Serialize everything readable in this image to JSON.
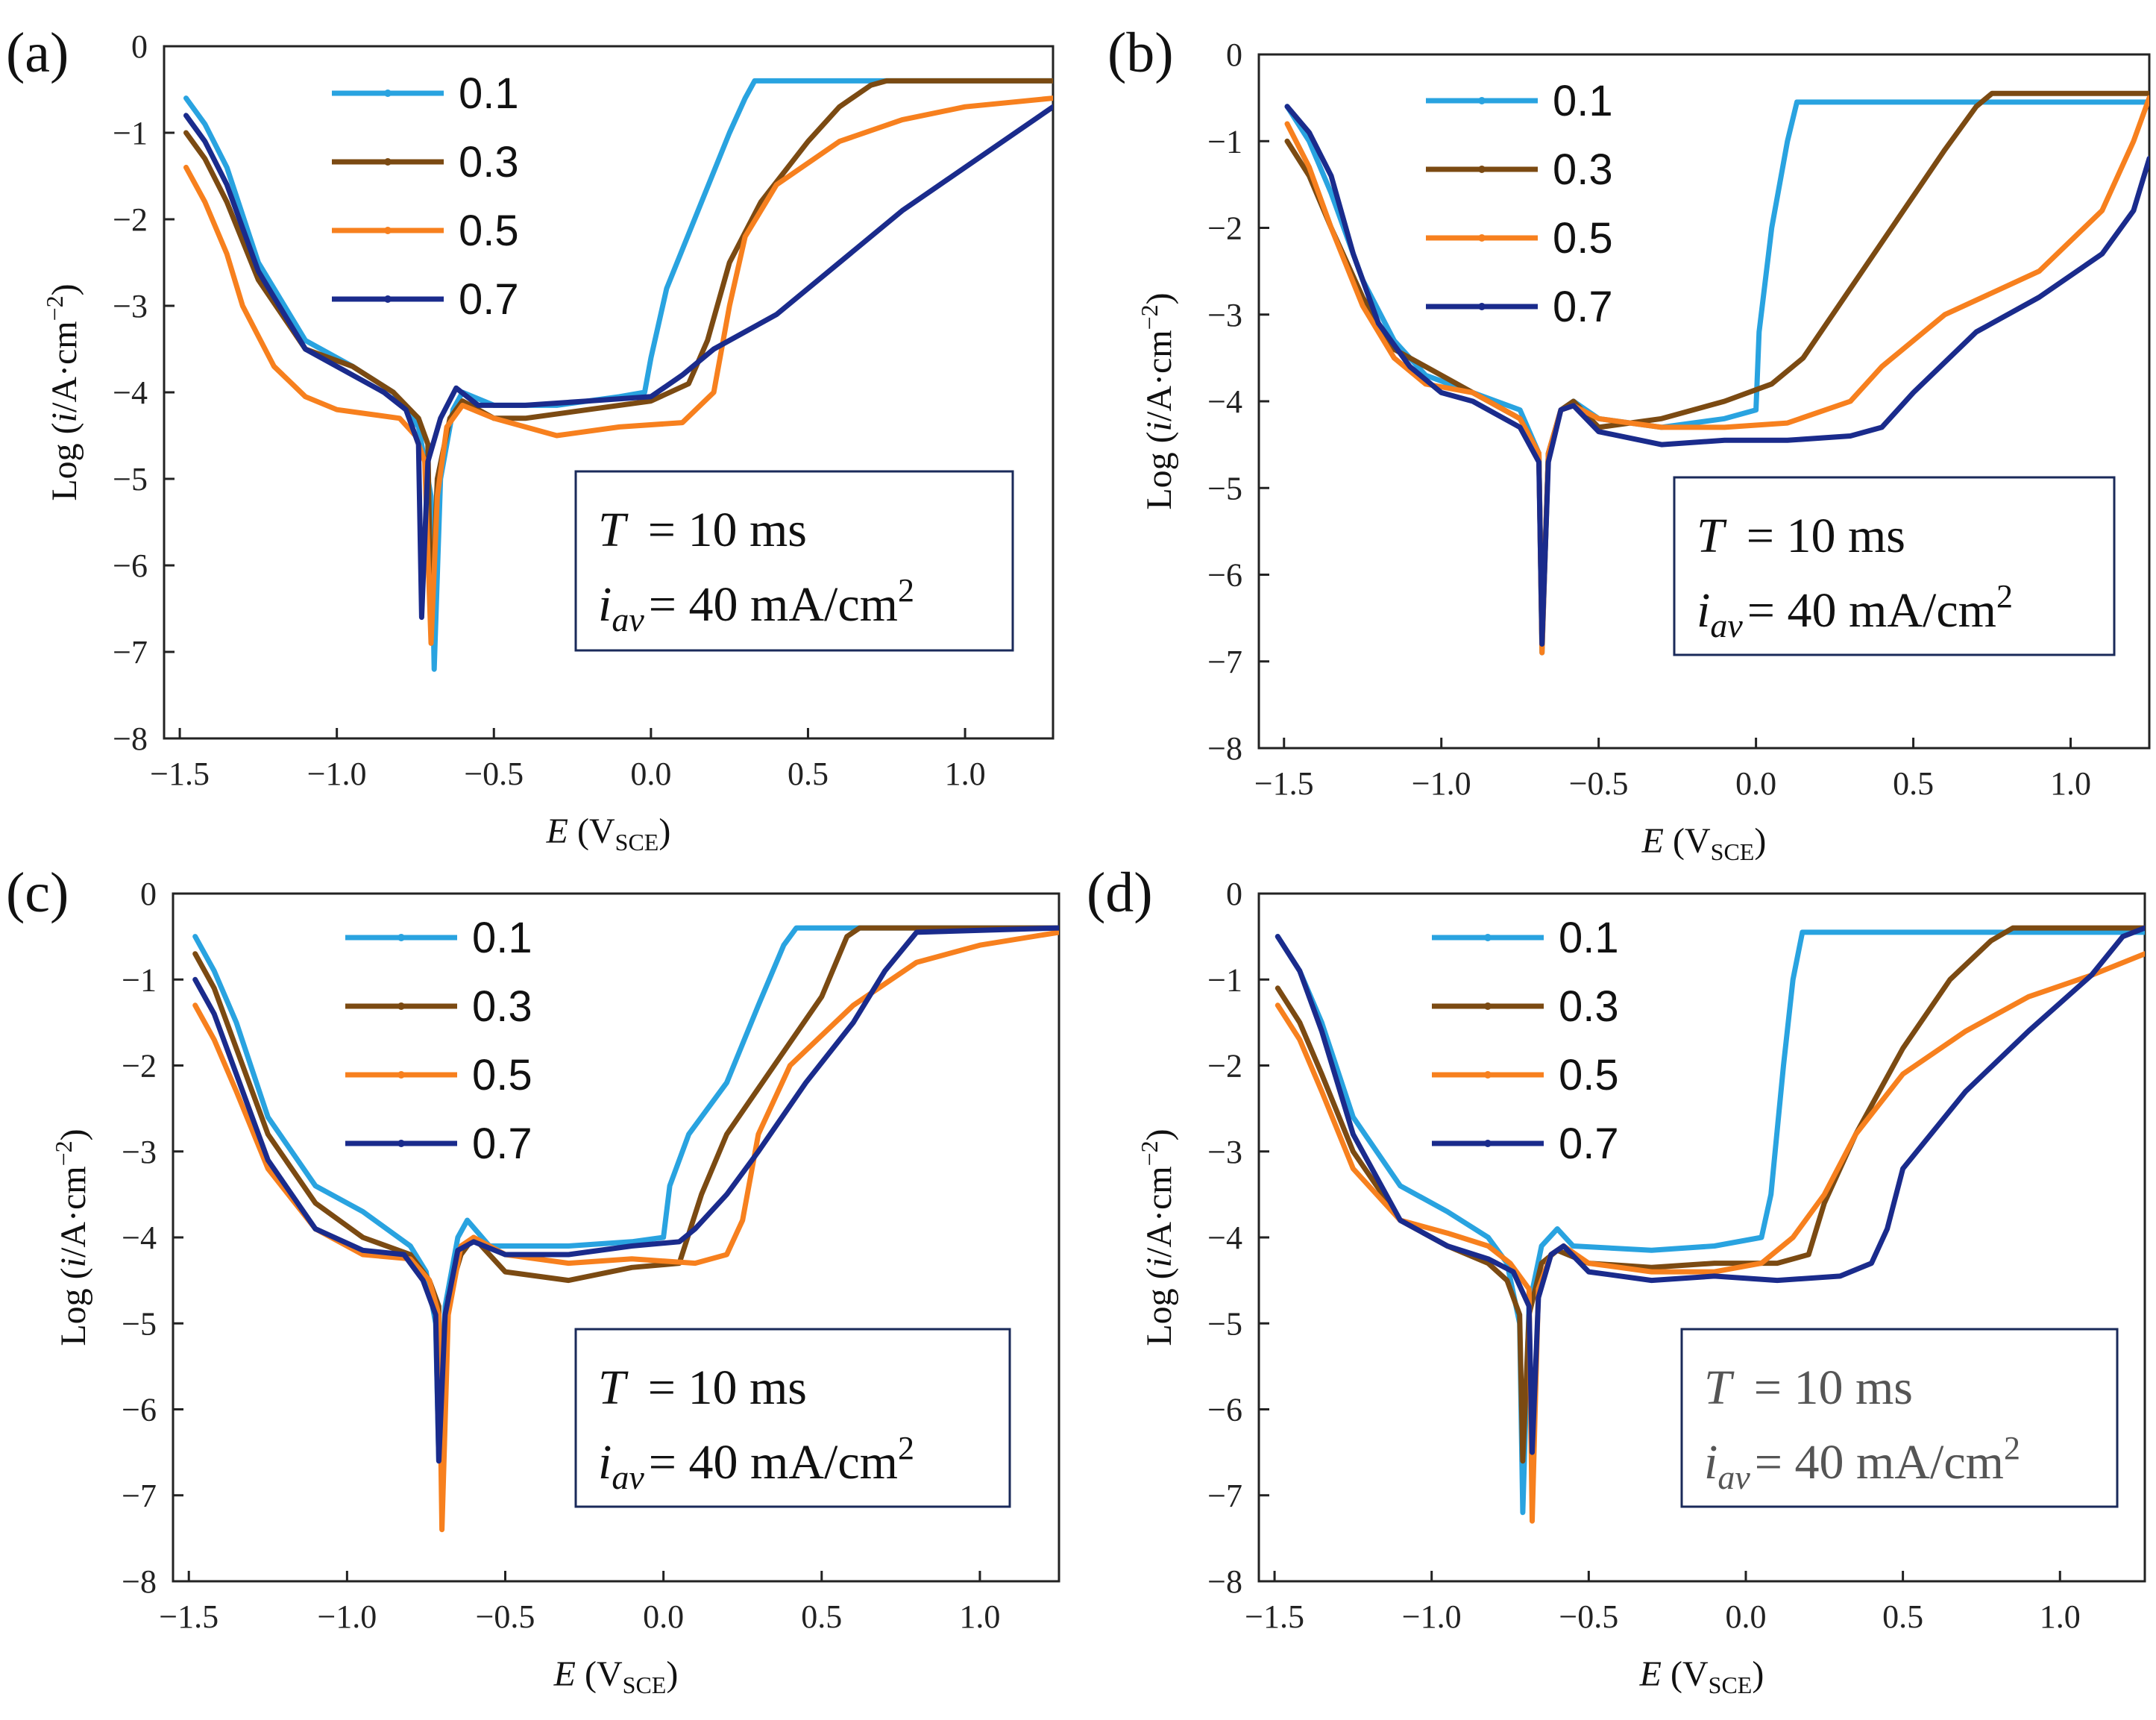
{
  "chart_data": [
    {
      "panel": "(a)",
      "type": "line",
      "xlabel": "E (VSCE)",
      "ylabel": "Log (i/A·cm−2)",
      "xlim": [
        -1.55,
        1.28
      ],
      "ylim": [
        -8,
        0
      ],
      "xticks": [
        "−1.5",
        "−1.0",
        "−0.5",
        "0.0",
        "0.5",
        "1.0"
      ],
      "yticks": [
        "0",
        "−1",
        "−2",
        "−3",
        "−4",
        "−5",
        "−6",
        "−7",
        "−8"
      ],
      "annotation": {
        "T": "T",
        "T_value": "= 10 ms",
        "i": "i",
        "i_sub": "av",
        "i_value": "= 40 mA/cm",
        "i_sup": "2"
      },
      "legend_position": "top-left",
      "series": [
        {
          "name": "0.1",
          "color": "#29a3e0",
          "x": [
            -1.48,
            -1.42,
            -1.35,
            -1.25,
            -1.1,
            -0.95,
            -0.82,
            -0.74,
            -0.7,
            -0.69,
            -0.67,
            -0.63,
            -0.6,
            -0.5,
            -0.3,
            -0.1,
            -0.02,
            0.0,
            0.05,
            0.15,
            0.25,
            0.3,
            0.33,
            1.28
          ],
          "y": [
            -0.6,
            -0.9,
            -1.4,
            -2.5,
            -3.4,
            -3.7,
            -4.0,
            -4.4,
            -5.2,
            -7.2,
            -5.0,
            -4.2,
            -4.0,
            -4.15,
            -4.15,
            -4.05,
            -4.0,
            -3.6,
            -2.8,
            -1.9,
            -1.0,
            -0.6,
            -0.4,
            -0.4
          ]
        },
        {
          "name": "0.3",
          "color": "#7b4a12",
          "x": [
            -1.48,
            -1.42,
            -1.35,
            -1.25,
            -1.1,
            -0.95,
            -0.82,
            -0.74,
            -0.71,
            -0.7,
            -0.68,
            -0.64,
            -0.6,
            -0.5,
            -0.4,
            -0.2,
            0.0,
            0.12,
            0.18,
            0.25,
            0.35,
            0.5,
            0.6,
            0.7,
            0.75,
            1.28
          ],
          "y": [
            -1.0,
            -1.3,
            -1.8,
            -2.7,
            -3.5,
            -3.7,
            -4.0,
            -4.3,
            -4.6,
            -6.8,
            -5.0,
            -4.3,
            -4.1,
            -4.3,
            -4.3,
            -4.2,
            -4.1,
            -3.9,
            -3.4,
            -2.5,
            -1.8,
            -1.1,
            -0.7,
            -0.45,
            -0.4,
            -0.4
          ]
        },
        {
          "name": "0.5",
          "color": "#f7801e",
          "x": [
            -1.48,
            -1.42,
            -1.35,
            -1.3,
            -1.2,
            -1.1,
            -1.0,
            -0.9,
            -0.8,
            -0.75,
            -0.72,
            -0.7,
            -0.68,
            -0.65,
            -0.6,
            -0.5,
            -0.3,
            -0.1,
            0.1,
            0.2,
            0.25,
            0.3,
            0.4,
            0.6,
            0.8,
            1.0,
            1.28
          ],
          "y": [
            -1.4,
            -1.8,
            -2.4,
            -3.0,
            -3.7,
            -4.05,
            -4.2,
            -4.25,
            -4.3,
            -4.5,
            -4.8,
            -6.9,
            -5.2,
            -4.4,
            -4.15,
            -4.3,
            -4.5,
            -4.4,
            -4.35,
            -4.0,
            -3.0,
            -2.2,
            -1.6,
            -1.1,
            -0.85,
            -0.7,
            -0.6
          ]
        },
        {
          "name": "0.7",
          "color": "#1a2b8c",
          "x": [
            -1.48,
            -1.42,
            -1.35,
            -1.25,
            -1.1,
            -0.95,
            -0.85,
            -0.78,
            -0.74,
            -0.73,
            -0.71,
            -0.67,
            -0.62,
            -0.55,
            -0.4,
            -0.2,
            0.0,
            0.1,
            0.2,
            0.4,
            0.6,
            0.8,
            1.0,
            1.28
          ],
          "y": [
            -0.8,
            -1.1,
            -1.6,
            -2.6,
            -3.5,
            -3.8,
            -4.0,
            -4.2,
            -4.6,
            -6.6,
            -4.8,
            -4.3,
            -3.95,
            -4.15,
            -4.15,
            -4.1,
            -4.05,
            -3.8,
            -3.5,
            -3.1,
            -2.5,
            -1.9,
            -1.4,
            -0.7
          ]
        }
      ]
    },
    {
      "panel": "(b)",
      "type": "line",
      "xlabel": "E (VSCE)",
      "ylabel": "Log (i/A·cm−2)",
      "xlim": [
        -1.58,
        1.25
      ],
      "ylim": [
        -8,
        0
      ],
      "xticks": [
        "−1.5",
        "−1.0",
        "−0.5",
        "0.0",
        "0.5",
        "1.0"
      ],
      "yticks": [
        "0",
        "−1",
        "−2",
        "−3",
        "−4",
        "−5",
        "−6",
        "−7",
        "−8"
      ],
      "annotation": {
        "T": "T",
        "T_value": "= 10 ms",
        "i": "i",
        "i_sub": "av",
        "i_value": "= 40 mA/cm",
        "i_sup": "2"
      },
      "legend_position": "top-center",
      "series": [
        {
          "name": "0.1",
          "color": "#29a3e0",
          "x": [
            -1.49,
            -1.42,
            -1.35,
            -1.25,
            -1.15,
            -1.05,
            -0.9,
            -0.75,
            -0.69,
            -0.68,
            -0.66,
            -0.62,
            -0.58,
            -0.5,
            -0.3,
            -0.1,
            0.0,
            0.01,
            0.05,
            0.1,
            0.13,
            1.25
          ],
          "y": [
            -0.6,
            -1.0,
            -1.6,
            -2.6,
            -3.3,
            -3.7,
            -3.9,
            -4.1,
            -4.6,
            -6.9,
            -4.6,
            -4.1,
            -4.0,
            -4.2,
            -4.3,
            -4.2,
            -4.1,
            -3.2,
            -2.0,
            -1.0,
            -0.55,
            -0.55
          ]
        },
        {
          "name": "0.3",
          "color": "#7b4a12",
          "x": [
            -1.49,
            -1.42,
            -1.35,
            -1.25,
            -1.15,
            -1.05,
            -0.9,
            -0.75,
            -0.69,
            -0.68,
            -0.66,
            -0.62,
            -0.58,
            -0.5,
            -0.3,
            -0.1,
            0.05,
            0.15,
            0.3,
            0.45,
            0.6,
            0.7,
            0.75,
            1.25
          ],
          "y": [
            -1.0,
            -1.4,
            -2.0,
            -2.8,
            -3.4,
            -3.6,
            -3.9,
            -4.2,
            -4.6,
            -6.8,
            -4.6,
            -4.1,
            -4.0,
            -4.3,
            -4.2,
            -4.0,
            -3.8,
            -3.5,
            -2.7,
            -1.9,
            -1.1,
            -0.6,
            -0.45,
            -0.45
          ]
        },
        {
          "name": "0.5",
          "color": "#f7801e",
          "x": [
            -1.49,
            -1.42,
            -1.35,
            -1.25,
            -1.15,
            -1.05,
            -0.9,
            -0.75,
            -0.69,
            -0.68,
            -0.66,
            -0.62,
            -0.58,
            -0.5,
            -0.3,
            -0.1,
            0.1,
            0.3,
            0.4,
            0.6,
            0.9,
            1.1,
            1.2,
            1.25
          ],
          "y": [
            -0.8,
            -1.3,
            -2.0,
            -2.9,
            -3.5,
            -3.8,
            -3.9,
            -4.2,
            -4.6,
            -6.9,
            -4.6,
            -4.1,
            -4.05,
            -4.2,
            -4.3,
            -4.3,
            -4.25,
            -4.0,
            -3.6,
            -3.0,
            -2.5,
            -1.8,
            -1.0,
            -0.5
          ]
        },
        {
          "name": "0.7",
          "color": "#1a2b8c",
          "x": [
            -1.49,
            -1.42,
            -1.35,
            -1.28,
            -1.2,
            -1.1,
            -1.0,
            -0.9,
            -0.75,
            -0.69,
            -0.68,
            -0.66,
            -0.62,
            -0.58,
            -0.5,
            -0.3,
            -0.1,
            0.1,
            0.3,
            0.4,
            0.5,
            0.7,
            0.9,
            1.1,
            1.2,
            1.25
          ],
          "y": [
            -0.6,
            -0.9,
            -1.4,
            -2.3,
            -3.1,
            -3.6,
            -3.9,
            -4.0,
            -4.3,
            -4.7,
            -6.8,
            -4.7,
            -4.1,
            -4.05,
            -4.35,
            -4.5,
            -4.45,
            -4.45,
            -4.4,
            -4.3,
            -3.9,
            -3.2,
            -2.8,
            -2.3,
            -1.8,
            -1.2
          ]
        }
      ]
    },
    {
      "panel": "(c)",
      "type": "line",
      "xlabel": "E (VSCE)",
      "ylabel": "Log (i/A·cm−2)",
      "xlim": [
        -1.55,
        1.25
      ],
      "ylim": [
        -8,
        0
      ],
      "xticks": [
        "−1.5",
        "−1.0",
        "−0.5",
        "0.0",
        "0.5",
        "1.0"
      ],
      "yticks": [
        "0",
        "−1",
        "−2",
        "−3",
        "−4",
        "−5",
        "−6",
        "−7",
        "−8"
      ],
      "annotation": {
        "T": "T",
        "T_value": "= 10 ms",
        "i": "i",
        "i_sub": "av",
        "i_value": "= 40 mA/cm",
        "i_sup": "2"
      },
      "legend_position": "top-center",
      "series": [
        {
          "name": "0.1",
          "color": "#29a3e0",
          "x": [
            -1.48,
            -1.42,
            -1.35,
            -1.25,
            -1.1,
            -0.95,
            -0.8,
            -0.75,
            -0.72,
            -0.71,
            -0.69,
            -0.65,
            -0.62,
            -0.55,
            -0.3,
            -0.1,
            0.0,
            0.02,
            0.08,
            0.2,
            0.3,
            0.38,
            0.42,
            1.25
          ],
          "y": [
            -0.5,
            -0.9,
            -1.5,
            -2.6,
            -3.4,
            -3.7,
            -4.1,
            -4.4,
            -5.0,
            -6.6,
            -4.8,
            -4.0,
            -3.8,
            -4.1,
            -4.1,
            -4.05,
            -4.0,
            -3.4,
            -2.8,
            -2.2,
            -1.3,
            -0.6,
            -0.4,
            -0.4
          ]
        },
        {
          "name": "0.3",
          "color": "#7b4a12",
          "x": [
            -1.48,
            -1.42,
            -1.35,
            -1.25,
            -1.1,
            -0.95,
            -0.8,
            -0.74,
            -0.71,
            -0.7,
            -0.68,
            -0.64,
            -0.6,
            -0.5,
            -0.3,
            -0.1,
            0.05,
            0.12,
            0.2,
            0.35,
            0.5,
            0.58,
            0.62,
            1.25
          ],
          "y": [
            -0.7,
            -1.1,
            -1.8,
            -2.8,
            -3.6,
            -4.0,
            -4.2,
            -4.5,
            -4.8,
            -6.9,
            -4.7,
            -4.2,
            -4.0,
            -4.4,
            -4.5,
            -4.35,
            -4.3,
            -3.5,
            -2.8,
            -2.0,
            -1.2,
            -0.5,
            -0.4,
            -0.4
          ]
        },
        {
          "name": "0.5",
          "color": "#f7801e",
          "x": [
            -1.48,
            -1.42,
            -1.35,
            -1.25,
            -1.1,
            -0.95,
            -0.8,
            -0.74,
            -0.71,
            -0.7,
            -0.68,
            -0.64,
            -0.6,
            -0.5,
            -0.3,
            -0.1,
            0.1,
            0.2,
            0.25,
            0.3,
            0.4,
            0.6,
            0.8,
            1.0,
            1.25
          ],
          "y": [
            -1.3,
            -1.7,
            -2.3,
            -3.2,
            -3.9,
            -4.2,
            -4.25,
            -4.5,
            -4.9,
            -7.4,
            -4.9,
            -4.1,
            -4.0,
            -4.2,
            -4.3,
            -4.25,
            -4.3,
            -4.2,
            -3.8,
            -2.8,
            -2.0,
            -1.3,
            -0.8,
            -0.6,
            -0.45
          ]
        },
        {
          "name": "0.7",
          "color": "#1a2b8c",
          "x": [
            -1.48,
            -1.42,
            -1.35,
            -1.25,
            -1.1,
            -0.95,
            -0.82,
            -0.76,
            -0.72,
            -0.71,
            -0.69,
            -0.65,
            -0.6,
            -0.5,
            -0.3,
            -0.1,
            0.05,
            0.1,
            0.2,
            0.3,
            0.45,
            0.6,
            0.7,
            0.8,
            1.25
          ],
          "y": [
            -1.0,
            -1.4,
            -2.1,
            -3.1,
            -3.9,
            -4.15,
            -4.2,
            -4.5,
            -4.9,
            -6.6,
            -4.9,
            -4.15,
            -4.05,
            -4.2,
            -4.2,
            -4.1,
            -4.05,
            -3.9,
            -3.5,
            -3.0,
            -2.2,
            -1.5,
            -0.9,
            -0.45,
            -0.4
          ]
        }
      ]
    },
    {
      "panel": "(d)",
      "type": "line",
      "xlabel": "E (VSCE)",
      "ylabel": "Log (i/A·cm−2)",
      "xlim": [
        -1.55,
        1.27
      ],
      "ylim": [
        -8,
        0
      ],
      "xticks": [
        "−1.5",
        "−1.0",
        "−0.5",
        "0.0",
        "0.5",
        "1.0"
      ],
      "yticks": [
        "0",
        "−1",
        "−2",
        "−3",
        "−4",
        "−5",
        "−6",
        "−7",
        "−8"
      ],
      "annotation": {
        "T": "T",
        "T_value": "= 10 ms",
        "i": "i",
        "i_sub": "av",
        "i_value": "= 40 mA/cm",
        "i_sup": "2"
      },
      "legend_position": "top-center",
      "series": [
        {
          "name": "0.1",
          "color": "#29a3e0",
          "x": [
            -1.49,
            -1.42,
            -1.35,
            -1.25,
            -1.1,
            -0.95,
            -0.82,
            -0.76,
            -0.72,
            -0.71,
            -0.69,
            -0.65,
            -0.6,
            -0.55,
            -0.3,
            -0.1,
            0.05,
            0.08,
            0.12,
            0.15,
            0.18,
            1.27
          ],
          "y": [
            -0.5,
            -0.9,
            -1.5,
            -2.6,
            -3.4,
            -3.7,
            -4.0,
            -4.3,
            -5.0,
            -7.2,
            -4.8,
            -4.1,
            -3.9,
            -4.1,
            -4.15,
            -4.1,
            -4.0,
            -3.5,
            -2.0,
            -1.0,
            -0.45,
            -0.45
          ]
        },
        {
          "name": "0.3",
          "color": "#7b4a12",
          "x": [
            -1.49,
            -1.42,
            -1.35,
            -1.25,
            -1.1,
            -0.95,
            -0.82,
            -0.76,
            -0.72,
            -0.71,
            -0.69,
            -0.65,
            -0.6,
            -0.5,
            -0.3,
            -0.1,
            0.1,
            0.2,
            0.25,
            0.35,
            0.5,
            0.65,
            0.78,
            0.85,
            1.27
          ],
          "y": [
            -1.1,
            -1.5,
            -2.1,
            -3.0,
            -3.8,
            -4.1,
            -4.3,
            -4.5,
            -4.9,
            -6.6,
            -4.9,
            -4.3,
            -4.15,
            -4.3,
            -4.35,
            -4.3,
            -4.3,
            -4.2,
            -3.6,
            -2.8,
            -1.8,
            -1.0,
            -0.55,
            -0.4,
            -0.4
          ]
        },
        {
          "name": "0.5",
          "color": "#f7801e",
          "x": [
            -1.49,
            -1.42,
            -1.35,
            -1.25,
            -1.1,
            -0.95,
            -0.82,
            -0.75,
            -0.69,
            -0.68,
            -0.66,
            -0.62,
            -0.58,
            -0.5,
            -0.3,
            -0.1,
            0.05,
            0.15,
            0.25,
            0.35,
            0.5,
            0.7,
            0.9,
            1.1,
            1.27
          ],
          "y": [
            -1.3,
            -1.7,
            -2.3,
            -3.2,
            -3.8,
            -3.95,
            -4.1,
            -4.3,
            -4.6,
            -7.3,
            -4.6,
            -4.2,
            -4.1,
            -4.3,
            -4.4,
            -4.4,
            -4.3,
            -4.0,
            -3.5,
            -2.8,
            -2.1,
            -1.6,
            -1.2,
            -0.95,
            -0.7
          ]
        },
        {
          "name": "0.7",
          "color": "#1a2b8c",
          "x": [
            -1.49,
            -1.42,
            -1.35,
            -1.25,
            -1.1,
            -0.95,
            -0.82,
            -0.74,
            -0.69,
            -0.68,
            -0.66,
            -0.62,
            -0.58,
            -0.5,
            -0.3,
            -0.1,
            0.1,
            0.3,
            0.4,
            0.45,
            0.5,
            0.7,
            0.9,
            1.1,
            1.2,
            1.27
          ],
          "y": [
            -0.5,
            -0.9,
            -1.6,
            -2.8,
            -3.8,
            -4.1,
            -4.25,
            -4.4,
            -4.8,
            -6.5,
            -4.7,
            -4.2,
            -4.1,
            -4.4,
            -4.5,
            -4.45,
            -4.5,
            -4.45,
            -4.3,
            -3.9,
            -3.2,
            -2.3,
            -1.6,
            -0.95,
            -0.5,
            -0.4
          ]
        }
      ]
    }
  ]
}
